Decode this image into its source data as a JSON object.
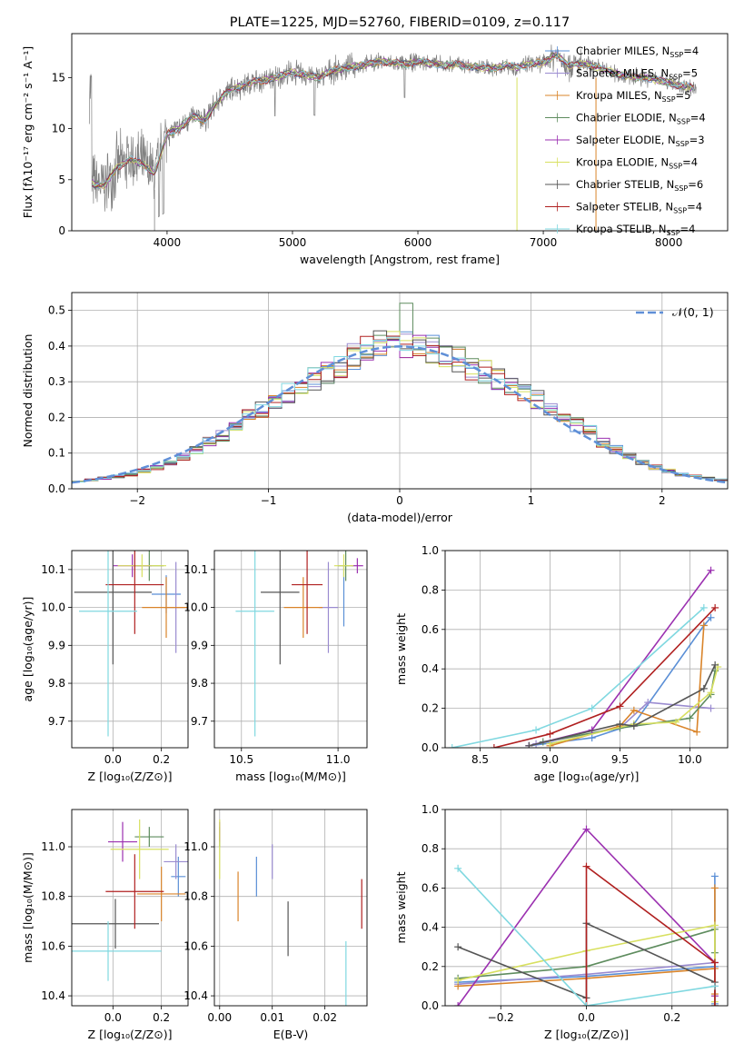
{
  "chart_data": [
    {
      "type": "line",
      "panel": "spectrum",
      "title": "PLATE=1225, MJD=52760, FIBERID=0109, z=0.117",
      "xlabel": "wavelength [Angstrom, rest frame]",
      "ylabel": "Flux [fλ10⁻¹⁷ erg cm⁻² s⁻¹ A⁻¹]",
      "xlim": [
        3240,
        8470
      ],
      "ylim": [
        0,
        19.3
      ],
      "xticks": [
        4000,
        5000,
        6000,
        7000,
        8000
      ],
      "yticks": [
        0,
        5,
        10,
        15
      ],
      "data_envelope": {
        "x": [
          3400,
          3500,
          3600,
          3700,
          3800,
          3900,
          4000,
          4100,
          4200,
          4300,
          4400,
          4500,
          4600,
          4700,
          4800,
          4900,
          5000,
          5100,
          5200,
          5300,
          5400,
          5500,
          5600,
          5700,
          5800,
          5900,
          6000,
          6100,
          6200,
          6300,
          6400,
          6500,
          6600,
          6700,
          6800,
          6900,
          7000,
          7100,
          7200,
          7300,
          7400,
          7500,
          7600,
          7700,
          7800,
          7900,
          8000,
          8100,
          8200
        ],
        "y": [
          4.6,
          4.4,
          6.2,
          7.0,
          6.6,
          5.6,
          9.5,
          10.0,
          11.2,
          10.8,
          12.6,
          13.8,
          14.2,
          14.6,
          14.8,
          15.1,
          15.5,
          15.3,
          15.0,
          15.6,
          15.9,
          16.1,
          16.3,
          16.6,
          16.4,
          16.3,
          16.6,
          16.4,
          16.2,
          16.3,
          16.1,
          16.0,
          15.9,
          16.2,
          16.0,
          16.4,
          16.4,
          17.3,
          16.2,
          16.3,
          16.1,
          15.7,
          15.3,
          15.1,
          15.0,
          14.8,
          14.5,
          14.2,
          14.0
        ]
      },
      "legend_location": "upper right",
      "series": [
        {
          "name": "Chabrier MILES, N",
          "sub": "SSP",
          "suffix": "=4",
          "color": "#5a8fd6"
        },
        {
          "name": "Salpeter MILES, N",
          "sub": "SSP",
          "suffix": "=5",
          "color": "#9a8bd0"
        },
        {
          "name": "Kroupa MILES, N",
          "sub": "SSP",
          "suffix": "=5",
          "color": "#d9842a"
        },
        {
          "name": "Chabrier ELODIE, N",
          "sub": "SSP",
          "suffix": "=4",
          "color": "#5e8c5e"
        },
        {
          "name": "Salpeter ELODIE, N",
          "sub": "SSP",
          "suffix": "=3",
          "color": "#9b30b0"
        },
        {
          "name": "Kroupa ELODIE, N",
          "sub": "SSP",
          "suffix": "=4",
          "color": "#d8e060"
        },
        {
          "name": "Chabrier STELIB, N",
          "sub": "SSP",
          "suffix": "=6",
          "color": "#555555"
        },
        {
          "name": "Salpeter STELIB, N",
          "sub": "SSP",
          "suffix": "=4",
          "color": "#b02020"
        },
        {
          "name": "Kroupa STELIB, N",
          "sub": "SSP",
          "suffix": "=4",
          "color": "#80d8e0"
        }
      ]
    },
    {
      "type": "bar",
      "panel": "residuals",
      "xlabel": "(data-model)/error",
      "ylabel": "Normed distribution",
      "xlim": [
        -2.5,
        2.5
      ],
      "ylim": [
        0,
        0.55
      ],
      "xticks": [
        -2,
        -1,
        0,
        1,
        2
      ],
      "yticks": [
        0.0,
        0.1,
        0.2,
        0.3,
        0.4,
        0.5
      ],
      "grid": true,
      "bin_width": 0.1,
      "x": [
        -2.45,
        -2.35,
        -2.25,
        -2.15,
        -2.05,
        -1.95,
        -1.85,
        -1.75,
        -1.65,
        -1.55,
        -1.45,
        -1.35,
        -1.25,
        -1.15,
        -1.05,
        -0.95,
        -0.85,
        -0.75,
        -0.65,
        -0.55,
        -0.45,
        -0.35,
        -0.25,
        -0.15,
        -0.05,
        0.05,
        0.15,
        0.25,
        0.35,
        0.45,
        0.55,
        0.65,
        0.75,
        0.85,
        0.95,
        1.05,
        1.15,
        1.25,
        1.35,
        1.45,
        1.55,
        1.65,
        1.75,
        1.85,
        1.95,
        2.05,
        2.15,
        2.25,
        2.35,
        2.45
      ],
      "values": [
        0.02,
        0.025,
        0.03,
        0.035,
        0.04,
        0.05,
        0.06,
        0.075,
        0.09,
        0.11,
        0.13,
        0.15,
        0.17,
        0.2,
        0.22,
        0.25,
        0.27,
        0.29,
        0.31,
        0.33,
        0.35,
        0.37,
        0.39,
        0.4,
        0.41,
        0.41,
        0.4,
        0.39,
        0.37,
        0.36,
        0.34,
        0.33,
        0.31,
        0.29,
        0.27,
        0.25,
        0.22,
        0.2,
        0.18,
        0.16,
        0.13,
        0.11,
        0.09,
        0.075,
        0.06,
        0.05,
        0.04,
        0.035,
        0.03,
        0.025
      ],
      "gaussian": {
        "label": "𝒩(0, 1)",
        "color": "#5f8fd7",
        "mean": 0,
        "sigma": 1
      },
      "legend_location": "upper right",
      "series_colors": [
        "#5a8fd6",
        "#9a8bd0",
        "#d9842a",
        "#5e8c5e",
        "#9b30b0",
        "#d8e060",
        "#555555",
        "#b02020",
        "#80d8e0"
      ]
    },
    {
      "type": "scatter",
      "panel": "age-vs-Z",
      "xlabel": "Z [log₁₀(Z/Z⊙)]",
      "ylabel": "age  [log₁₀(age/yr)]",
      "xlim": [
        -0.17,
        0.31
      ],
      "ylim": [
        9.63,
        10.15
      ],
      "xticks": [
        0.0,
        0.2
      ],
      "yticks": [
        9.7,
        9.8,
        9.9,
        10.0,
        10.1
      ],
      "grid": true,
      "points": [
        {
          "x": 0.22,
          "y": 10.035,
          "xerr": 0.06,
          "yerr": 0.05,
          "color": "#5a8fd6"
        },
        {
          "x": 0.26,
          "y": 10.0,
          "xerr": 0.05,
          "yerr": 0.12,
          "color": "#9a8bd0"
        },
        {
          "x": 0.22,
          "y": 10.0,
          "xerr": 0.1,
          "yerr": 0.08,
          "color": "#d9842a"
        },
        {
          "x": 0.15,
          "y": 10.11,
          "xerr": 0.06,
          "yerr": 0.04,
          "color": "#5e8c5e"
        },
        {
          "x": 0.08,
          "y": 10.11,
          "xerr": 0.08,
          "yerr": 0.03,
          "color": "#9b30b0"
        },
        {
          "x": 0.12,
          "y": 10.11,
          "xerr": 0.1,
          "yerr": 0.03,
          "color": "#d8e060"
        },
        {
          "x": 0.0,
          "y": 10.04,
          "xerr": 0.16,
          "yerr": 0.19,
          "color": "#555555"
        },
        {
          "x": 0.09,
          "y": 10.06,
          "xerr": 0.12,
          "yerr": 0.13,
          "color": "#b02020"
        },
        {
          "x": -0.02,
          "y": 9.99,
          "xerr": 0.12,
          "yerr": 0.33,
          "color": "#80d8e0"
        }
      ]
    },
    {
      "type": "scatter",
      "panel": "age-vs-mass",
      "xlabel": "mass [log₁₀(M/M⊙)]",
      "ylabel": "",
      "xlim": [
        10.36,
        11.15
      ],
      "ylim": [
        9.63,
        10.15
      ],
      "xticks": [
        10.5,
        11.0
      ],
      "yticks": [
        9.7,
        9.8,
        9.9,
        10.0,
        10.1
      ],
      "grid": true,
      "points": [
        {
          "x": 11.03,
          "y": 10.03,
          "xerr": 0.0,
          "yerr": 0.08,
          "color": "#5a8fd6"
        },
        {
          "x": 10.95,
          "y": 10.0,
          "xerr": 0.05,
          "yerr": 0.12,
          "color": "#9a8bd0"
        },
        {
          "x": 10.82,
          "y": 10.0,
          "xerr": 0.1,
          "yerr": 0.08,
          "color": "#d9842a"
        },
        {
          "x": 11.04,
          "y": 10.11,
          "xerr": 0.04,
          "yerr": 0.04,
          "color": "#5e8c5e"
        },
        {
          "x": 11.1,
          "y": 10.11,
          "xerr": 0.03,
          "yerr": 0.02,
          "color": "#9b30b0"
        },
        {
          "x": 11.03,
          "y": 10.11,
          "xerr": 0.05,
          "yerr": 0.03,
          "color": "#d8e060"
        },
        {
          "x": 10.7,
          "y": 10.04,
          "xerr": 0.1,
          "yerr": 0.19,
          "color": "#555555"
        },
        {
          "x": 10.84,
          "y": 10.06,
          "xerr": 0.08,
          "yerr": 0.13,
          "color": "#b02020"
        },
        {
          "x": 10.57,
          "y": 9.99,
          "xerr": 0.1,
          "yerr": 0.33,
          "color": "#80d8e0"
        }
      ]
    },
    {
      "type": "line",
      "panel": "weight-vs-age",
      "xlabel": "age  [log₁₀(age/yr)]",
      "ylabel": "mass weight",
      "xlim": [
        8.25,
        10.27
      ],
      "ylim": [
        0,
        1
      ],
      "xticks": [
        8.5,
        9.0,
        9.5,
        10.0
      ],
      "yticks": [
        0.0,
        0.2,
        0.4,
        0.6,
        0.8,
        1.0
      ],
      "grid": true,
      "series": [
        {
          "color": "#5a8fd6",
          "x": [
            8.85,
            9.3,
            9.6,
            10.1,
            10.15
          ],
          "y": [
            0.01,
            0.05,
            0.12,
            0.62,
            0.66
          ]
        },
        {
          "color": "#9a8bd0",
          "x": [
            8.9,
            9.5,
            9.7,
            10.15
          ],
          "y": [
            0.02,
            0.1,
            0.23,
            0.2
          ]
        },
        {
          "color": "#d9842a",
          "x": [
            9.0,
            9.5,
            9.6,
            10.05,
            10.1
          ],
          "y": [
            0.01,
            0.11,
            0.19,
            0.08,
            0.62
          ]
        },
        {
          "color": "#5e8c5e",
          "x": [
            8.95,
            9.5,
            10.0,
            10.15,
            10.18
          ],
          "y": [
            0.03,
            0.1,
            0.15,
            0.27,
            0.39
          ]
        },
        {
          "color": "#9b30b0",
          "x": [
            8.85,
            9.3,
            10.15
          ],
          "y": [
            0.01,
            0.09,
            0.9
          ]
        },
        {
          "color": "#d8e060",
          "x": [
            9.0,
            9.6,
            9.9,
            10.15,
            10.2
          ],
          "y": [
            0.02,
            0.12,
            0.13,
            0.28,
            0.41
          ]
        },
        {
          "color": "#555555",
          "x": [
            8.85,
            9.5,
            9.6,
            10.1,
            10.18
          ],
          "y": [
            0.01,
            0.12,
            0.11,
            0.3,
            0.42
          ]
        },
        {
          "color": "#b02020",
          "x": [
            8.6,
            9.0,
            9.5,
            10.18
          ],
          "y": [
            0.0,
            0.07,
            0.21,
            0.71
          ]
        },
        {
          "color": "#80d8e0",
          "x": [
            8.3,
            8.9,
            9.3,
            10.1
          ],
          "y": [
            0.0,
            0.09,
            0.2,
            0.71
          ]
        }
      ]
    },
    {
      "type": "scatter",
      "panel": "mass-vs-Z",
      "xlabel": "Z [log₁₀(Z/Z⊙)]",
      "ylabel": "mass [log₁₀(M/M⊙)]",
      "xlim": [
        -0.17,
        0.31
      ],
      "ylim": [
        10.36,
        11.15
      ],
      "xticks": [
        0.0,
        0.2
      ],
      "yticks": [
        10.4,
        10.6,
        10.8,
        11.0
      ],
      "grid": true,
      "points": [
        {
          "x": 0.27,
          "y": 10.88,
          "xerr": 0.03,
          "yerr": 0.08,
          "color": "#5a8fd6"
        },
        {
          "x": 0.26,
          "y": 10.94,
          "xerr": 0.05,
          "yerr": 0.07,
          "color": "#9a8bd0"
        },
        {
          "x": 0.2,
          "y": 10.81,
          "xerr": 0.1,
          "yerr": 0.11,
          "color": "#d9842a"
        },
        {
          "x": 0.15,
          "y": 11.04,
          "xerr": 0.06,
          "yerr": 0.04,
          "color": "#5e8c5e"
        },
        {
          "x": 0.04,
          "y": 11.02,
          "xerr": 0.06,
          "yerr": 0.08,
          "color": "#9b30b0"
        },
        {
          "x": 0.11,
          "y": 10.99,
          "xerr": 0.12,
          "yerr": 0.12,
          "color": "#d8e060"
        },
        {
          "x": 0.01,
          "y": 10.69,
          "xerr": 0.18,
          "yerr": 0.1,
          "color": "#555555"
        },
        {
          "x": 0.09,
          "y": 10.82,
          "xerr": 0.12,
          "yerr": 0.15,
          "color": "#b02020"
        },
        {
          "x": -0.02,
          "y": 10.58,
          "xerr": 0.22,
          "yerr": 0.12,
          "color": "#80d8e0"
        }
      ]
    },
    {
      "type": "scatter",
      "panel": "mass-vs-EBV",
      "xlabel": "E(B-V)",
      "ylabel": "",
      "xlim": [
        -0.001,
        0.028
      ],
      "ylim": [
        10.36,
        11.15
      ],
      "xticks": [
        0.0,
        0.01,
        0.02
      ],
      "yticks": [
        10.4,
        10.6,
        10.8,
        11.0
      ],
      "grid": true,
      "points": [
        {
          "x": 0.007,
          "y": 10.88,
          "xerr": 0.0,
          "yerr": 0.08,
          "color": "#5a8fd6"
        },
        {
          "x": 0.01,
          "y": 10.94,
          "xerr": 0.0,
          "yerr": 0.07,
          "color": "#9a8bd0"
        },
        {
          "x": 0.0035,
          "y": 10.8,
          "xerr": 0.0,
          "yerr": 0.1,
          "color": "#d9842a"
        },
        {
          "x": 0.0,
          "y": 11.04,
          "xerr": 0.0,
          "yerr": 0.04,
          "color": "#5e8c5e"
        },
        {
          "x": 0.0,
          "y": 11.06,
          "xerr": 0.0,
          "yerr": 0.04,
          "color": "#9b30b0"
        },
        {
          "x": 0.0,
          "y": 10.99,
          "xerr": 0.0,
          "yerr": 0.12,
          "color": "#d8e060"
        },
        {
          "x": 0.013,
          "y": 10.67,
          "xerr": 0.0,
          "yerr": 0.11,
          "color": "#555555"
        },
        {
          "x": 0.027,
          "y": 10.77,
          "xerr": 0.0,
          "yerr": 0.1,
          "color": "#b02020"
        },
        {
          "x": 0.024,
          "y": 10.47,
          "xerr": 0.0,
          "yerr": 0.15,
          "color": "#80d8e0"
        }
      ]
    },
    {
      "type": "line",
      "panel": "weight-vs-Z",
      "xlabel": "Z [log₁₀(Z/Z⊙)]",
      "ylabel": "mass weight",
      "xlim": [
        -0.33,
        0.33
      ],
      "ylim": [
        0,
        1
      ],
      "xticks": [
        -0.2,
        0.0,
        0.2
      ],
      "yticks": [
        0.0,
        0.2,
        0.4,
        0.6,
        0.8,
        1.0
      ],
      "grid": true,
      "series": [
        {
          "color": "#5a8fd6",
          "x": [
            -0.3,
            0.0,
            0.3,
            0.3,
            0.3
          ],
          "y": [
            0.12,
            0.15,
            0.2,
            0.66,
            0.01
          ]
        },
        {
          "color": "#9a8bd0",
          "x": [
            -0.3,
            0.0,
            0.3,
            0.3
          ],
          "y": [
            0.11,
            0.16,
            0.22,
            0.1
          ]
        },
        {
          "color": "#d9842a",
          "x": [
            -0.3,
            0.0,
            0.3,
            0.3,
            0.3
          ],
          "y": [
            0.1,
            0.14,
            0.19,
            0.6,
            0.06
          ]
        },
        {
          "color": "#5e8c5e",
          "x": [
            -0.3,
            0.0,
            0.3,
            0.3
          ],
          "y": [
            0.14,
            0.2,
            0.39,
            0.27
          ]
        },
        {
          "color": "#9b30b0",
          "x": [
            -0.3,
            0.0,
            0.3,
            0.3
          ],
          "y": [
            0.0,
            0.9,
            0.22,
            0.05
          ]
        },
        {
          "color": "#d8e060",
          "x": [
            -0.3,
            0.0,
            0.3,
            0.3
          ],
          "y": [
            0.13,
            0.28,
            0.41,
            0.02
          ]
        },
        {
          "color": "#555555",
          "x": [
            -0.3,
            0.0,
            0.0,
            0.3,
            0.3
          ],
          "y": [
            0.3,
            0.04,
            0.42,
            0.12,
            0.0
          ]
        },
        {
          "color": "#b02020",
          "x": [
            0.0,
            0.0,
            0.3,
            0.3
          ],
          "y": [
            0.0,
            0.71,
            0.22,
            0.0
          ]
        },
        {
          "color": "#80d8e0",
          "x": [
            -0.3,
            0.0,
            0.3
          ],
          "y": [
            0.7,
            0.0,
            0.1
          ]
        }
      ]
    }
  ]
}
